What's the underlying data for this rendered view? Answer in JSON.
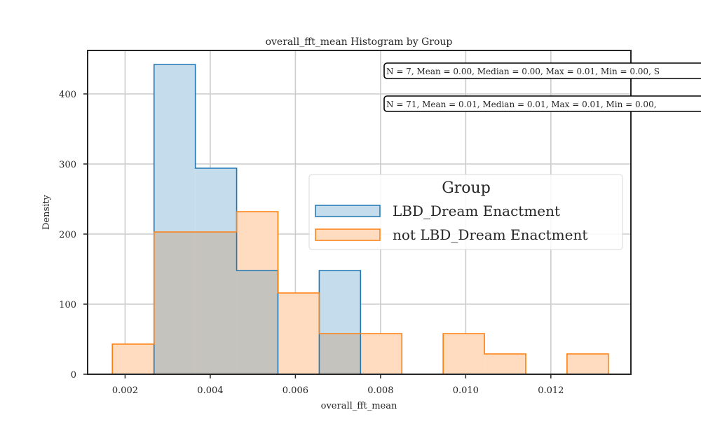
{
  "chart_data": {
    "type": "histogram",
    "title": "overall_fft_mean Histogram by Group",
    "xlabel": "overall_fft_mean",
    "ylabel": "Density",
    "xlim": [
      0.00112,
      0.01388
    ],
    "ylim": [
      0,
      462
    ],
    "xticks": [
      0.002,
      0.004,
      0.006,
      0.008,
      0.01,
      0.012
    ],
    "xtick_labels": [
      "0.002",
      "0.004",
      "0.006",
      "0.008",
      "0.010",
      "0.012"
    ],
    "yticks": [
      0,
      100,
      200,
      300,
      400
    ],
    "ytick_labels": [
      "0",
      "100",
      "200",
      "300",
      "400"
    ],
    "grid": true,
    "legend": {
      "title": "Group",
      "placement": "center-right"
    },
    "series": [
      {
        "name": "LBD_Dream Enactment",
        "color": "#1f77b4",
        "fill": "#c5dced",
        "bins": [
          {
            "x0": 0.00268,
            "x1": 0.00365,
            "value": 442
          },
          {
            "x0": 0.00365,
            "x1": 0.00462,
            "value": 294
          },
          {
            "x0": 0.00462,
            "x1": 0.00559,
            "value": 148
          },
          {
            "x0": 0.00559,
            "x1": 0.00656,
            "value": 0
          },
          {
            "x0": 0.00656,
            "x1": 0.00753,
            "value": 148
          }
        ],
        "stats_text": "N = 7, Mean = 0.00, Median = 0.00, Max = 0.01, Min = 0.00, S"
      },
      {
        "name": "not LBD_Dream Enactment",
        "color": "#ff7f0e",
        "fill": "#ffdcc0",
        "bins": [
          {
            "x0": 0.0017,
            "x1": 0.00268,
            "value": 43
          },
          {
            "x0": 0.00268,
            "x1": 0.00365,
            "value": 203
          },
          {
            "x0": 0.00365,
            "x1": 0.00462,
            "value": 203
          },
          {
            "x0": 0.00462,
            "x1": 0.00559,
            "value": 232
          },
          {
            "x0": 0.00559,
            "x1": 0.00656,
            "value": 116
          },
          {
            "x0": 0.00656,
            "x1": 0.00753,
            "value": 58
          },
          {
            "x0": 0.00753,
            "x1": 0.0085,
            "value": 58
          },
          {
            "x0": 0.0085,
            "x1": 0.00947,
            "value": 0
          },
          {
            "x0": 0.00947,
            "x1": 0.01044,
            "value": 58
          },
          {
            "x0": 0.01044,
            "x1": 0.01141,
            "value": 29
          },
          {
            "x0": 0.01141,
            "x1": 0.01238,
            "value": 0
          },
          {
            "x0": 0.01238,
            "x1": 0.01335,
            "value": 29
          }
        ],
        "stats_text": "N = 71, Mean = 0.01, Median = 0.01, Max = 0.01, Min = 0.00,"
      }
    ],
    "overlap_fill": "#c5c3be"
  }
}
